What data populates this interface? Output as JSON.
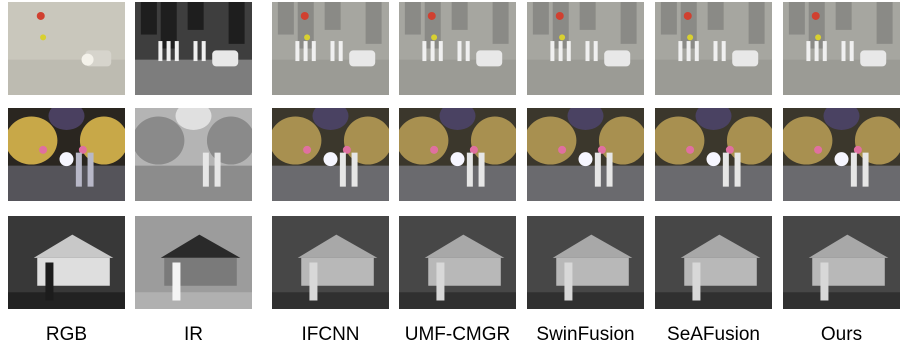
{
  "columns": [
    "RGB",
    "IR",
    "IFCNN",
    "UMF-CMGR",
    "SwinFusion",
    "SeAFusion",
    "Ours"
  ]
}
